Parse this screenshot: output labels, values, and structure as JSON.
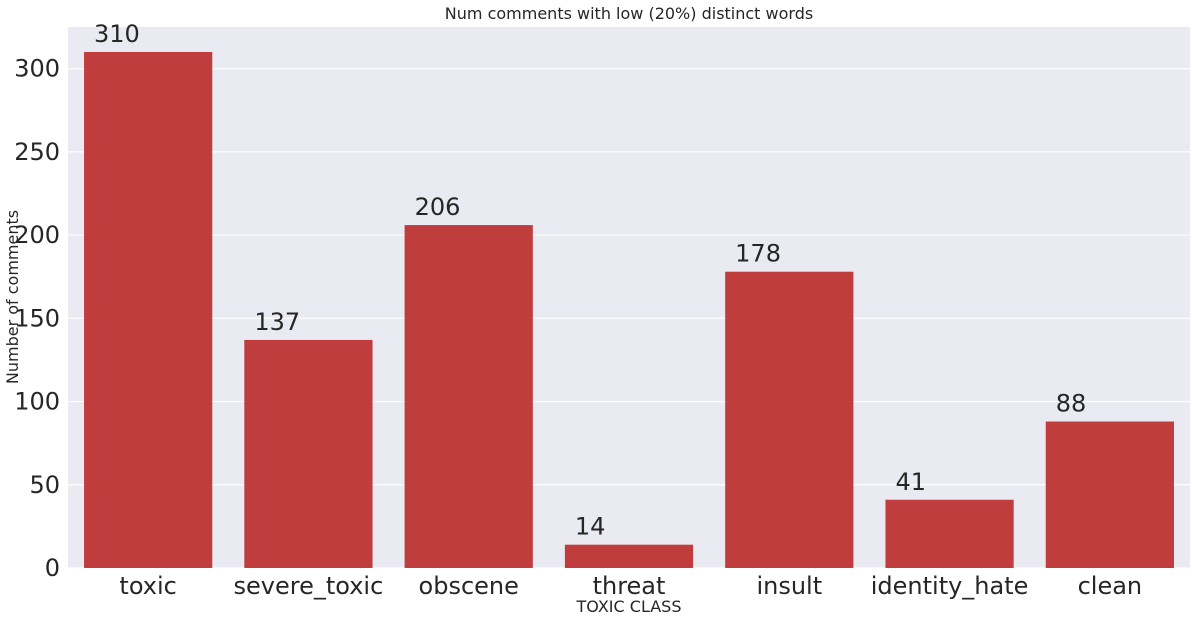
{
  "chart_data": {
    "type": "bar",
    "title": "Num comments with low (20%) distinct words",
    "xlabel": "TOXIC CLASS",
    "ylabel": "Number of comments",
    "categories": [
      "toxic",
      "severe_toxic",
      "obscene",
      "threat",
      "insult",
      "identity_hate",
      "clean"
    ],
    "values": [
      310,
      137,
      206,
      14,
      178,
      41,
      88
    ],
    "data_labels": [
      "310",
      "137",
      "206",
      "14",
      "178",
      "41",
      "88"
    ],
    "ylim": [
      0,
      325
    ],
    "yticks": [
      0,
      50,
      100,
      150,
      200,
      250,
      300
    ],
    "grid": true,
    "legend": "none",
    "colors": {
      "bar": "#c03d3e",
      "plot_background": "#eaeaf2",
      "grid": "#ffffff",
      "text": "#262626"
    }
  }
}
